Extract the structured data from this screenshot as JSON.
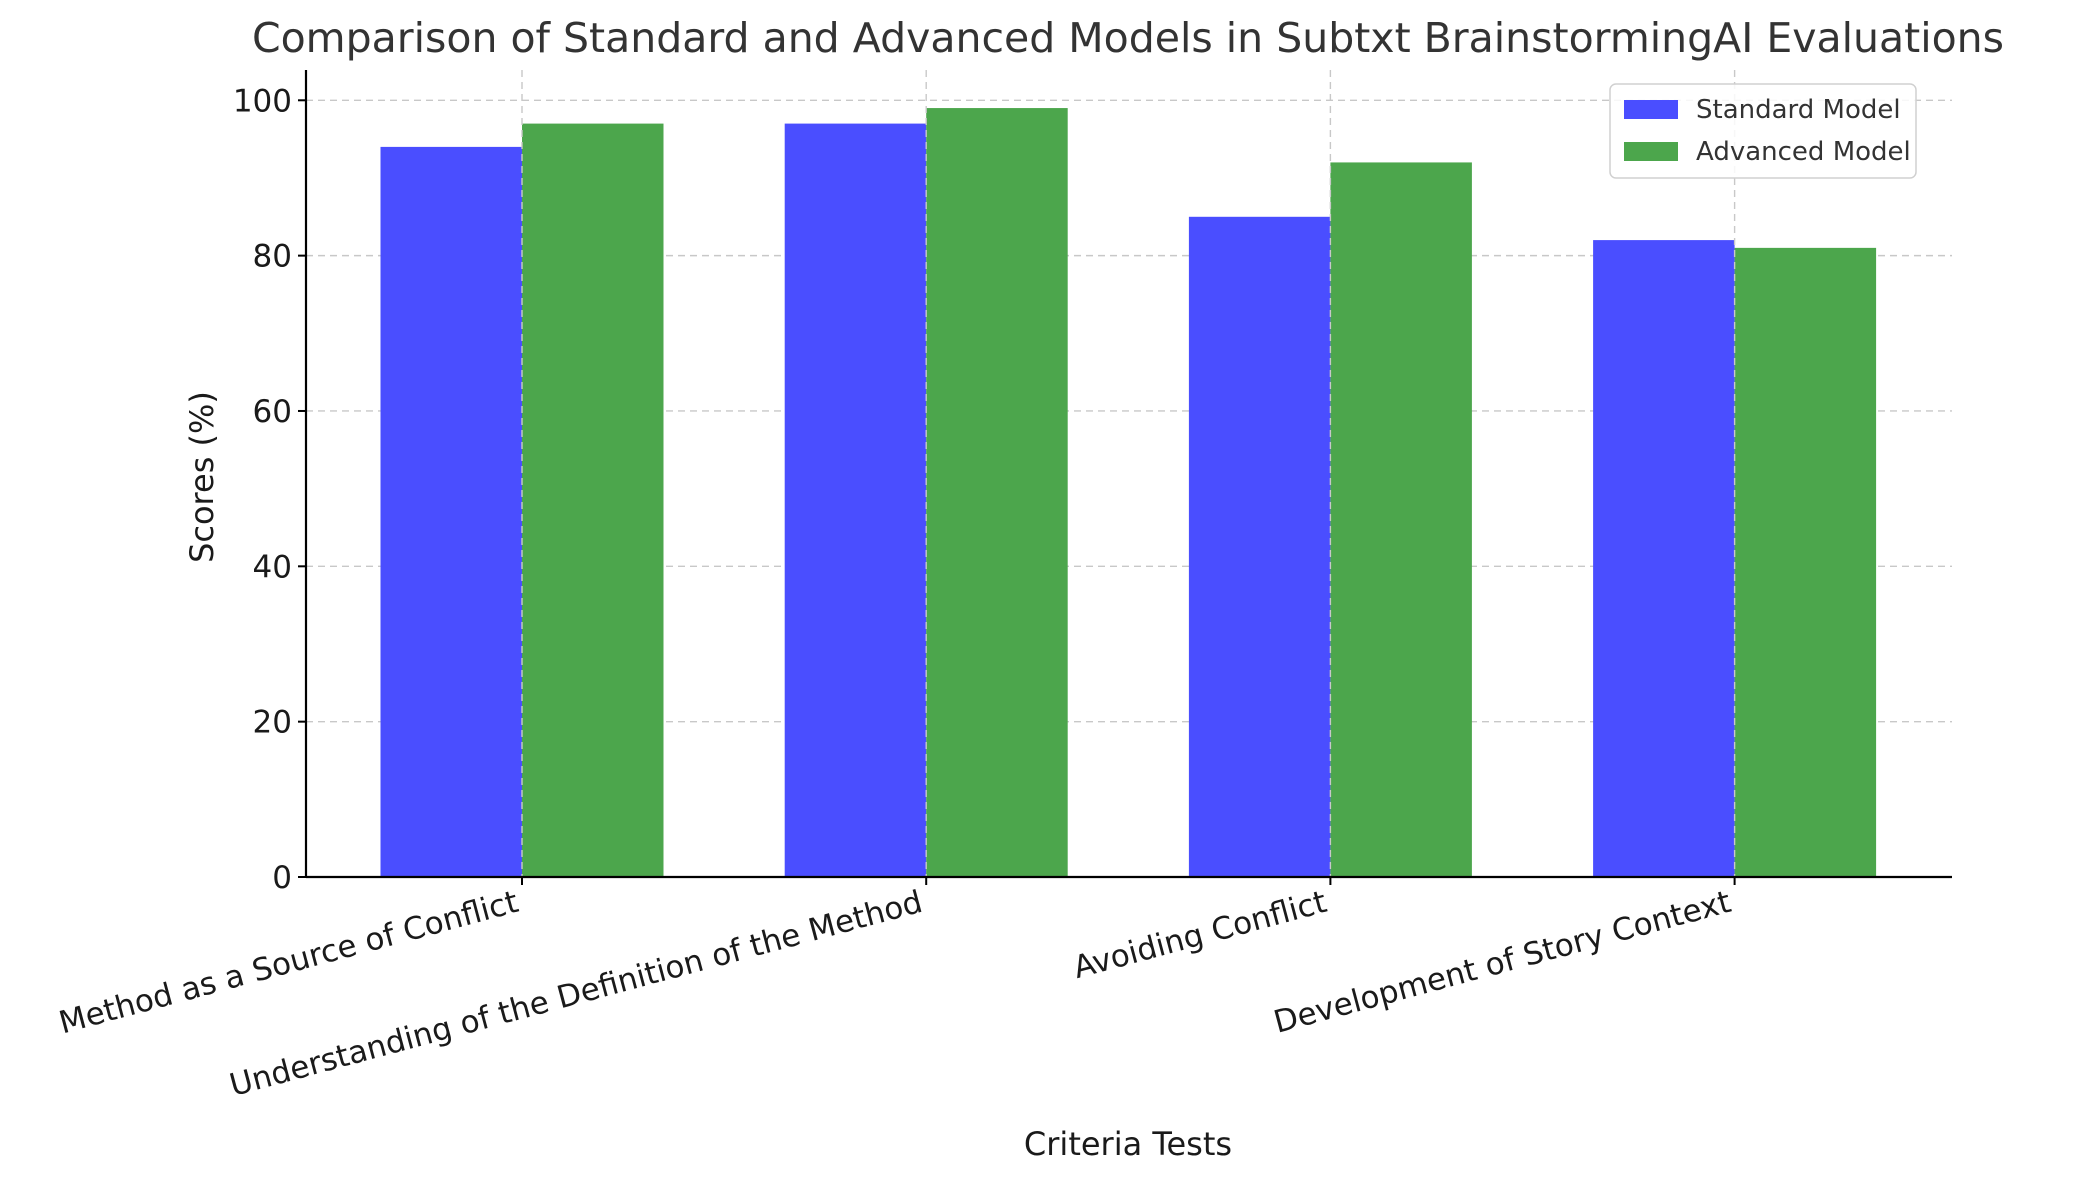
{
  "chart_data": {
    "type": "bar",
    "title": "Comparison of Standard and Advanced Models in Subtxt BrainstormingAI Evaluations",
    "xlabel": "Criteria Tests",
    "ylabel": "Scores (%)",
    "categories": [
      "Method as a Source of Conflict",
      "Understanding of the Definition of the Method",
      "Avoiding Conflict",
      "Development of Story Context"
    ],
    "series": [
      {
        "name": "Standard Model",
        "color": "#4a4eff",
        "values": [
          94,
          97,
          85,
          82
        ]
      },
      {
        "name": "Advanced Model",
        "color": "#4ca64c",
        "values": [
          97,
          99,
          92,
          81
        ]
      }
    ],
    "yticks": [
      0,
      20,
      40,
      60,
      80,
      100
    ],
    "ylim": [
      0,
      103.9
    ],
    "grid": true,
    "legend": "top-right"
  }
}
